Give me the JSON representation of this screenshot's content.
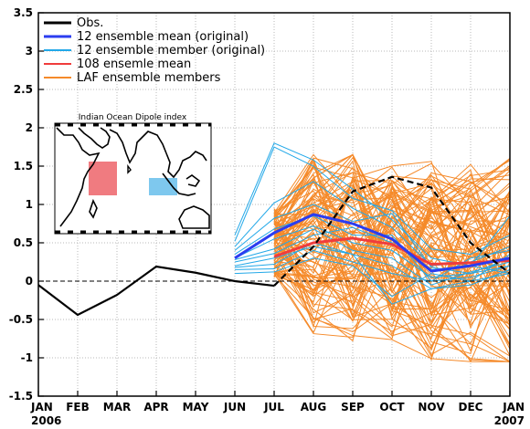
{
  "chart_data": {
    "type": "line",
    "title": "",
    "xlabel": "",
    "ylabel": "",
    "ylim": [
      -1.5,
      3.5
    ],
    "yticks": [
      "-1.5",
      "-1",
      "-0.5",
      "0",
      "0.5",
      "1",
      "1.5",
      "2",
      "2.5",
      "3",
      "3.5"
    ],
    "xticks": [
      {
        "label": "JAN",
        "year": "2006"
      },
      {
        "label": "FEB",
        "year": ""
      },
      {
        "label": "MAR",
        "year": ""
      },
      {
        "label": "APR",
        "year": ""
      },
      {
        "label": "MAY",
        "year": ""
      },
      {
        "label": "JUN",
        "year": ""
      },
      {
        "label": "JUL",
        "year": ""
      },
      {
        "label": "AUG",
        "year": ""
      },
      {
        "label": "SEP",
        "year": ""
      },
      {
        "label": "OCT",
        "year": ""
      },
      {
        "label": "NOV",
        "year": ""
      },
      {
        "label": "DEC",
        "year": ""
      },
      {
        "label": "JAN",
        "year": "2007"
      }
    ],
    "legend_position": "top-left",
    "legend": [
      {
        "label": "Obs.",
        "color": "#000000"
      },
      {
        "label": "12 ensemble mean (original)",
        "color": "#2b3df0"
      },
      {
        "label": "12 ensemble member (original)",
        "color": "#22a8e8"
      },
      {
        "label": "108 ensemle mean",
        "color": "#f03c3c"
      },
      {
        "label": "LAF ensemble members",
        "color": "#f58a2a"
      }
    ],
    "series": {
      "obs_solid": {
        "x": [
          0,
          1,
          2,
          3,
          4,
          5,
          6
        ],
        "y": [
          -0.05,
          -0.44,
          -0.18,
          0.19,
          0.11,
          0.0,
          -0.06
        ]
      },
      "obs_dashed": {
        "x": [
          6,
          7,
          8,
          9,
          10,
          11,
          12
        ],
        "y": [
          -0.06,
          0.45,
          1.17,
          1.36,
          1.22,
          0.5,
          0.1
        ]
      },
      "ens12_mean": {
        "x": [
          5,
          6,
          7,
          8,
          9,
          10,
          11,
          12
        ],
        "y": [
          0.3,
          0.63,
          0.87,
          0.75,
          0.55,
          0.13,
          0.2,
          0.3
        ]
      },
      "mean108": {
        "x": [
          6,
          7,
          8,
          9,
          10,
          11,
          12
        ],
        "y": [
          0.32,
          0.5,
          0.56,
          0.48,
          0.22,
          0.24,
          0.27
        ]
      },
      "ens12_members": [
        [
          0.6,
          1.8,
          1.58,
          1.2,
          0.8,
          0.3,
          0.2,
          0.85
        ],
        [
          0.52,
          1.75,
          1.5,
          1.08,
          0.92,
          0.42,
          0.35,
          0.6
        ],
        [
          0.45,
          1.02,
          1.3,
          0.95,
          0.7,
          0.2,
          0.25,
          0.45
        ],
        [
          0.4,
          0.82,
          1.0,
          0.78,
          0.88,
          0.18,
          0.1,
          0.3
        ],
        [
          0.35,
          0.68,
          0.85,
          0.6,
          0.6,
          0.0,
          0.3,
          0.4
        ],
        [
          0.3,
          0.55,
          0.72,
          0.5,
          0.4,
          0.05,
          0.1,
          0.2
        ],
        [
          0.28,
          0.42,
          0.68,
          0.4,
          0.3,
          -0.05,
          0.12,
          0.25
        ],
        [
          0.25,
          0.36,
          0.6,
          0.7,
          0.5,
          0.15,
          0.2,
          0.1
        ],
        [
          0.2,
          0.3,
          0.45,
          0.35,
          0.2,
          -0.1,
          0.0,
          0.35
        ],
        [
          0.18,
          0.22,
          0.5,
          0.35,
          -0.3,
          -0.1,
          -0.05,
          0.15
        ],
        [
          0.15,
          0.16,
          0.4,
          0.25,
          0.1,
          0.0,
          0.05,
          0.2
        ],
        [
          0.1,
          0.12,
          0.3,
          0.2,
          -0.2,
          0.1,
          0.0,
          0.1
        ]
      ]
    },
    "inset": {
      "title": "Indian Ocean Dipole index",
      "west_box_color": "#f07b80",
      "east_box_color": "#7ec8ee"
    }
  }
}
